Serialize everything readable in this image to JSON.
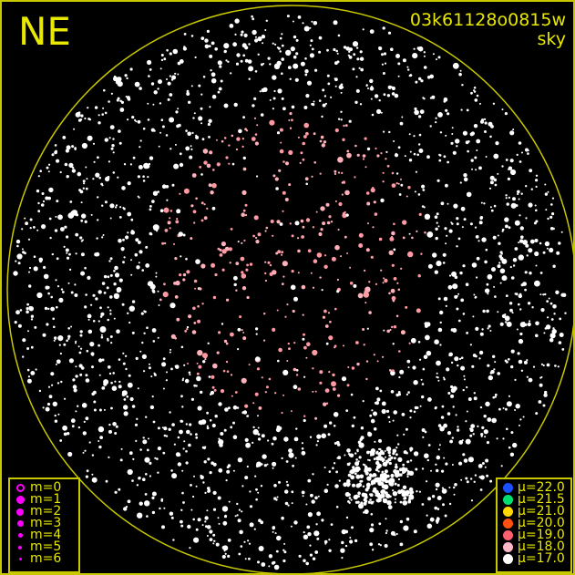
{
  "header": {
    "direction": "NE",
    "filename": "03k61128o0815w",
    "type": "sky"
  },
  "magnitude_legend": [
    {
      "label": "m=0",
      "size": 9,
      "hollow": true
    },
    {
      "label": "m=1",
      "size": 9
    },
    {
      "label": "m=2",
      "size": 8
    },
    {
      "label": "m=3",
      "size": 7
    },
    {
      "label": "m=4",
      "size": 5
    },
    {
      "label": "m=5",
      "size": 4
    },
    {
      "label": "m=6",
      "size": 3
    }
  ],
  "brightness_legend": [
    {
      "label": "μ=22.0",
      "color": "#1a50ff"
    },
    {
      "label": "μ=21.5",
      "color": "#00e070"
    },
    {
      "label": "μ=21.0",
      "color": "#ffd800"
    },
    {
      "label": "μ=20.0",
      "color": "#ff5010"
    },
    {
      "label": "μ=19.0",
      "color": "#ff6070"
    },
    {
      "label": "μ=18.0",
      "color": "#ffb8c8"
    },
    {
      "label": "μ=17.0",
      "color": "#ffffff"
    }
  ],
  "colors": {
    "frame": "#c8c800",
    "legend_symbol": "#ff00ff",
    "center_stars": "#ffa0a8",
    "outer_stars": "#ffffff"
  }
}
